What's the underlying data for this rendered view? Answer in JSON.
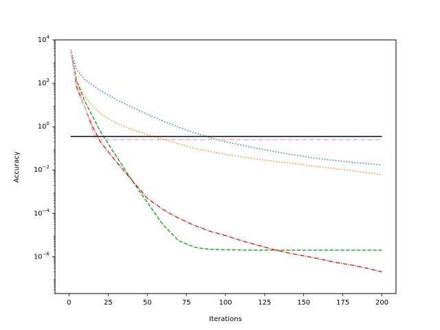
{
  "chart_data": {
    "type": "line",
    "title": "",
    "xlabel": "Iterations",
    "ylabel": "Accuracy",
    "xscale": "linear",
    "yscale": "log",
    "xlim": [
      -9,
      209
    ],
    "ylim": [
      2e-08,
      10000.0
    ],
    "xticks": [
      0,
      25,
      50,
      75,
      100,
      125,
      150,
      175,
      200
    ],
    "yticks": [
      {
        "value": 1e-06,
        "base": "10",
        "exp": "−6"
      },
      {
        "value": 0.0001,
        "base": "10",
        "exp": "−4"
      },
      {
        "value": 0.01,
        "base": "10",
        "exp": "−2"
      },
      {
        "value": 1,
        "base": "10",
        "exp": "0"
      },
      {
        "value": 100,
        "base": "10",
        "exp": "2"
      },
      {
        "value": 10000,
        "base": "10",
        "exp": "4"
      }
    ],
    "grid": false,
    "legend": "none",
    "series": [
      {
        "color": "#1f77b4",
        "style": "dotted",
        "x": [
          1,
          5,
          10,
          20,
          30,
          40,
          50,
          60,
          70,
          80,
          90,
          100,
          120,
          140,
          160,
          180,
          200
        ],
        "y": [
          3500,
          400,
          150,
          45,
          18,
          8,
          3.7,
          1.8,
          0.95,
          0.52,
          0.31,
          0.2,
          0.1,
          0.055,
          0.033,
          0.023,
          0.017
        ]
      },
      {
        "color": "#ff7f0e",
        "style": "dotted",
        "x": [
          1,
          5,
          10,
          15,
          20,
          30,
          40,
          50,
          60,
          70,
          80,
          100,
          120,
          140,
          160,
          180,
          200
        ],
        "y": [
          3500,
          120,
          25,
          9,
          4,
          1.45,
          0.75,
          0.43,
          0.26,
          0.16,
          0.1,
          0.052,
          0.032,
          0.021,
          0.014,
          0.0095,
          0.006
        ]
      },
      {
        "color": "#2ca02c",
        "style": "dashed",
        "x": [
          1,
          5,
          10,
          20,
          30,
          40,
          50,
          60,
          70,
          80,
          85,
          90,
          100,
          120,
          150,
          175,
          200
        ],
        "y": [
          3500,
          120,
          15,
          0.6,
          0.045,
          0.0035,
          0.00032,
          3e-05,
          5.5e-06,
          2.8e-06,
          2.4e-06,
          2.2e-06,
          2.1e-06,
          2e-06,
          2e-06,
          2e-06,
          2e-06
        ]
      },
      {
        "color": "#d62728",
        "style": "dashdot",
        "x": [
          1,
          5,
          10,
          15,
          20,
          25,
          30,
          40,
          50,
          60,
          70,
          80,
          90,
          100,
          110,
          120,
          130,
          140,
          150,
          160,
          170,
          180,
          190,
          200
        ],
        "y": [
          3500,
          60,
          8,
          1,
          0.2,
          0.07,
          0.025,
          0.0035,
          0.0005,
          0.00015,
          6e-05,
          2.8e-05,
          1.5e-05,
          9.5e-06,
          5.5e-06,
          3.5e-06,
          2.2e-06,
          1.5e-06,
          1.1e-06,
          8e-07,
          5.5e-07,
          4.2e-07,
          3e-07,
          2e-07
        ]
      },
      {
        "color": "#f4a9b8",
        "style": "dashdot",
        "x": [
          1,
          4,
          8,
          12,
          16,
          18,
          20,
          25,
          50,
          100,
          150,
          200
        ],
        "y": [
          3500,
          200,
          20,
          3,
          0.4,
          0.27,
          0.25,
          0.25,
          0.25,
          0.25,
          0.25,
          0.25
        ]
      },
      {
        "color": "#000000",
        "style": "solid",
        "x": [
          1,
          200
        ],
        "y": [
          0.35,
          0.35
        ]
      }
    ]
  }
}
